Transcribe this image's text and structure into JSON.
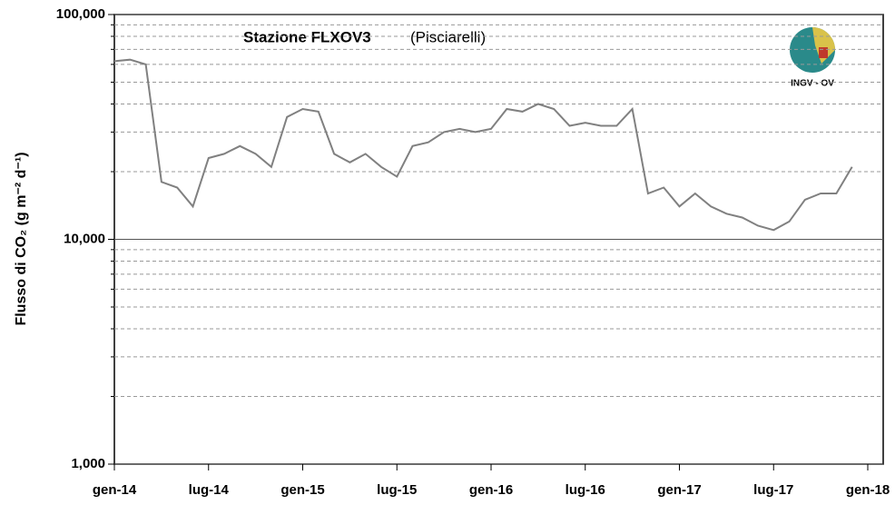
{
  "chart_data": {
    "type": "line",
    "title": "Stazione FLXOV3",
    "subtitle": "(Pisciarelli)",
    "logo_text": "INGV - OV",
    "y_label": "Flusso di CO₂ (g m⁻² d⁻¹)",
    "log_scale": true,
    "grid": true,
    "xlim": [
      "2014-01",
      "2018-01"
    ],
    "xticks": [
      {
        "value": "2014-01",
        "label": "gen-14"
      },
      {
        "value": "2014-07",
        "label": "lug-14"
      },
      {
        "value": "2015-01",
        "label": "gen-15"
      },
      {
        "value": "2015-07",
        "label": "lug-15"
      },
      {
        "value": "2016-01",
        "label": "gen-16"
      },
      {
        "value": "2016-07",
        "label": "lug-16"
      },
      {
        "value": "2017-01",
        "label": "gen-17"
      },
      {
        "value": "2017-07",
        "label": "lug-17"
      },
      {
        "value": "2018-01",
        "label": "gen-18"
      }
    ],
    "ylim": [
      1000,
      100000
    ],
    "yticks": [
      {
        "value": 1000,
        "label": "1,000"
      },
      {
        "value": 10000,
        "label": "10,000"
      },
      {
        "value": 100000,
        "label": "100,000"
      }
    ],
    "minor_yticks": [
      2000,
      3000,
      4000,
      5000,
      6000,
      7000,
      8000,
      9000,
      20000,
      30000,
      40000,
      50000,
      60000,
      70000,
      80000,
      90000
    ],
    "x": [
      "2014-01",
      "2014-02",
      "2014-03",
      "2014-04",
      "2014-05",
      "2014-06",
      "2014-07",
      "2014-08",
      "2014-09",
      "2014-10",
      "2014-11",
      "2014-12",
      "2015-01",
      "2015-02",
      "2015-03",
      "2015-04",
      "2015-05",
      "2015-06",
      "2015-07",
      "2015-08",
      "2015-09",
      "2015-10",
      "2015-11",
      "2015-12",
      "2016-01",
      "2016-02",
      "2016-03",
      "2016-04",
      "2016-05",
      "2016-06",
      "2016-07",
      "2016-08",
      "2016-09",
      "2016-10",
      "2016-11",
      "2016-12",
      "2017-01",
      "2017-02",
      "2017-03",
      "2017-04",
      "2017-05",
      "2017-06",
      "2017-07",
      "2017-08",
      "2017-09",
      "2017-10",
      "2017-11",
      "2017-12"
    ],
    "series": [
      {
        "name": "FLXOV3",
        "color": "#808080",
        "values": [
          62000,
          63000,
          60000,
          18000,
          17000,
          14000,
          23000,
          24000,
          26000,
          24000,
          21000,
          35000,
          38000,
          37000,
          24000,
          22000,
          24000,
          21000,
          19000,
          26000,
          27000,
          30000,
          31000,
          30000,
          31000,
          38000,
          37000,
          40000,
          38000,
          32000,
          33000,
          32000,
          32000,
          38000,
          16000,
          17000,
          14000,
          16000,
          14000,
          13000,
          12500,
          11500,
          11000,
          12000,
          15000,
          16000,
          16000,
          21000
        ]
      }
    ]
  }
}
